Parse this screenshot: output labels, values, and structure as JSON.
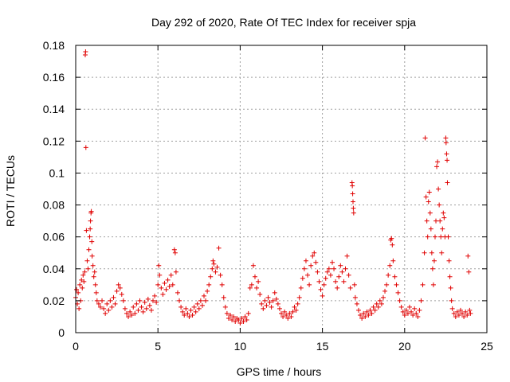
{
  "chart_data": {
    "type": "scatter",
    "title": "Day 292 of 2020, Rate Of TEC Index for receiver spja",
    "xlabel": "GPS time / hours",
    "ylabel": "ROTI / TECUs",
    "xlim": [
      0,
      25
    ],
    "ylim": [
      0,
      0.18
    ],
    "xticks": [
      0,
      5,
      10,
      15,
      20,
      25
    ],
    "xtick_labels": [
      "0",
      "5",
      "10",
      "15",
      "20",
      "25"
    ],
    "yticks": [
      0,
      0.02,
      0.04,
      0.06,
      0.08,
      0.1,
      0.12,
      0.14,
      0.16,
      0.18
    ],
    "ytick_labels": [
      "0",
      "0.02",
      "0.04",
      "0.06",
      "0.08",
      "0.1",
      "0.12",
      "0.14",
      "0.16",
      "0.18"
    ],
    "grid": true,
    "marker": "plus",
    "color": "#e00000",
    "series": [
      {
        "name": "ROTI",
        "points": [
          [
            0.0,
            0.022
          ],
          [
            0.05,
            0.027
          ],
          [
            0.1,
            0.018
          ],
          [
            0.15,
            0.025
          ],
          [
            0.2,
            0.015
          ],
          [
            0.25,
            0.03
          ],
          [
            0.3,
            0.02
          ],
          [
            0.35,
            0.033
          ],
          [
            0.4,
            0.028
          ],
          [
            0.45,
            0.036
          ],
          [
            0.5,
            0.032
          ],
          [
            0.55,
            0.038
          ],
          [
            0.58,
            0.174
          ],
          [
            0.6,
            0.176
          ],
          [
            0.62,
            0.116
          ],
          [
            0.65,
            0.064
          ],
          [
            0.7,
            0.045
          ],
          [
            0.75,
            0.04
          ],
          [
            0.8,
            0.052
          ],
          [
            0.85,
            0.06
          ],
          [
            0.88,
            0.065
          ],
          [
            0.9,
            0.07
          ],
          [
            0.93,
            0.075
          ],
          [
            0.95,
            0.076
          ],
          [
            0.98,
            0.057
          ],
          [
            1.0,
            0.048
          ],
          [
            1.05,
            0.042
          ],
          [
            1.1,
            0.035
          ],
          [
            1.15,
            0.038
          ],
          [
            1.2,
            0.03
          ],
          [
            1.25,
            0.025
          ],
          [
            1.3,
            0.02
          ],
          [
            1.4,
            0.018
          ],
          [
            1.5,
            0.016
          ],
          [
            1.6,
            0.02
          ],
          [
            1.7,
            0.015
          ],
          [
            1.8,
            0.012
          ],
          [
            1.9,
            0.018
          ],
          [
            2.0,
            0.014
          ],
          [
            2.1,
            0.02
          ],
          [
            2.2,
            0.016
          ],
          [
            2.3,
            0.022
          ],
          [
            2.4,
            0.018
          ],
          [
            2.5,
            0.026
          ],
          [
            2.6,
            0.03
          ],
          [
            2.7,
            0.028
          ],
          [
            2.8,
            0.024
          ],
          [
            2.9,
            0.02
          ],
          [
            3.0,
            0.015
          ],
          [
            3.1,
            0.012
          ],
          [
            3.2,
            0.01
          ],
          [
            3.3,
            0.013
          ],
          [
            3.4,
            0.011
          ],
          [
            3.5,
            0.016
          ],
          [
            3.6,
            0.012
          ],
          [
            3.7,
            0.018
          ],
          [
            3.8,
            0.014
          ],
          [
            3.9,
            0.02
          ],
          [
            4.0,
            0.016
          ],
          [
            4.1,
            0.013
          ],
          [
            4.2,
            0.019
          ],
          [
            4.3,
            0.015
          ],
          [
            4.4,
            0.021
          ],
          [
            4.5,
            0.017
          ],
          [
            4.6,
            0.014
          ],
          [
            4.7,
            0.02
          ],
          [
            4.8,
            0.023
          ],
          [
            4.9,
            0.019
          ],
          [
            5.0,
            0.03
          ],
          [
            5.05,
            0.042
          ],
          [
            5.1,
            0.036
          ],
          [
            5.2,
            0.028
          ],
          [
            5.3,
            0.024
          ],
          [
            5.4,
            0.031
          ],
          [
            5.5,
            0.027
          ],
          [
            5.6,
            0.033
          ],
          [
            5.7,
            0.029
          ],
          [
            5.8,
            0.036
          ],
          [
            5.9,
            0.03
          ],
          [
            6.0,
            0.052
          ],
          [
            6.05,
            0.05
          ],
          [
            6.1,
            0.038
          ],
          [
            6.2,
            0.025
          ],
          [
            6.3,
            0.02
          ],
          [
            6.4,
            0.016
          ],
          [
            6.5,
            0.013
          ],
          [
            6.6,
            0.011
          ],
          [
            6.7,
            0.015
          ],
          [
            6.8,
            0.012
          ],
          [
            6.9,
            0.01
          ],
          [
            7.0,
            0.014
          ],
          [
            7.1,
            0.011
          ],
          [
            7.2,
            0.016
          ],
          [
            7.3,
            0.013
          ],
          [
            7.4,
            0.018
          ],
          [
            7.5,
            0.015
          ],
          [
            7.6,
            0.02
          ],
          [
            7.7,
            0.017
          ],
          [
            7.8,
            0.023
          ],
          [
            7.9,
            0.02
          ],
          [
            8.0,
            0.026
          ],
          [
            8.1,
            0.03
          ],
          [
            8.2,
            0.035
          ],
          [
            8.3,
            0.04
          ],
          [
            8.35,
            0.045
          ],
          [
            8.4,
            0.043
          ],
          [
            8.5,
            0.038
          ],
          [
            8.6,
            0.041
          ],
          [
            8.7,
            0.053
          ],
          [
            8.8,
            0.036
          ],
          [
            8.9,
            0.03
          ],
          [
            9.0,
            0.022
          ],
          [
            9.1,
            0.016
          ],
          [
            9.2,
            0.012
          ],
          [
            9.3,
            0.009
          ],
          [
            9.4,
            0.011
          ],
          [
            9.5,
            0.008
          ],
          [
            9.6,
            0.01
          ],
          [
            9.7,
            0.007
          ],
          [
            9.8,
            0.009
          ],
          [
            9.9,
            0.008
          ],
          [
            10.0,
            0.006
          ],
          [
            10.1,
            0.009
          ],
          [
            10.2,
            0.007
          ],
          [
            10.3,
            0.01
          ],
          [
            10.4,
            0.008
          ],
          [
            10.5,
            0.012
          ],
          [
            10.6,
            0.028
          ],
          [
            10.7,
            0.03
          ],
          [
            10.8,
            0.042
          ],
          [
            10.9,
            0.035
          ],
          [
            11.0,
            0.028
          ],
          [
            11.1,
            0.032
          ],
          [
            11.2,
            0.024
          ],
          [
            11.3,
            0.018
          ],
          [
            11.4,
            0.015
          ],
          [
            11.5,
            0.02
          ],
          [
            11.6,
            0.017
          ],
          [
            11.7,
            0.022
          ],
          [
            11.8,
            0.019
          ],
          [
            11.9,
            0.016
          ],
          [
            12.0,
            0.02
          ],
          [
            12.1,
            0.025
          ],
          [
            12.2,
            0.021
          ],
          [
            12.3,
            0.018
          ],
          [
            12.4,
            0.015
          ],
          [
            12.5,
            0.012
          ],
          [
            12.6,
            0.01
          ],
          [
            12.7,
            0.013
          ],
          [
            12.8,
            0.011
          ],
          [
            12.9,
            0.009
          ],
          [
            13.0,
            0.012
          ],
          [
            13.1,
            0.01
          ],
          [
            13.2,
            0.013
          ],
          [
            13.3,
            0.016
          ],
          [
            13.4,
            0.014
          ],
          [
            13.5,
            0.018
          ],
          [
            13.6,
            0.022
          ],
          [
            13.7,
            0.028
          ],
          [
            13.8,
            0.034
          ],
          [
            13.9,
            0.04
          ],
          [
            14.0,
            0.045
          ],
          [
            14.1,
            0.036
          ],
          [
            14.2,
            0.03
          ],
          [
            14.3,
            0.042
          ],
          [
            14.4,
            0.048
          ],
          [
            14.5,
            0.05
          ],
          [
            14.6,
            0.044
          ],
          [
            14.7,
            0.038
          ],
          [
            14.8,
            0.032
          ],
          [
            14.9,
            0.027
          ],
          [
            15.0,
            0.023
          ],
          [
            15.1,
            0.03
          ],
          [
            15.2,
            0.034
          ],
          [
            15.3,
            0.038
          ],
          [
            15.4,
            0.04
          ],
          [
            15.5,
            0.036
          ],
          [
            15.6,
            0.044
          ],
          [
            15.7,
            0.04
          ],
          [
            15.8,
            0.032
          ],
          [
            15.9,
            0.028
          ],
          [
            16.0,
            0.035
          ],
          [
            16.1,
            0.042
          ],
          [
            16.2,
            0.038
          ],
          [
            16.3,
            0.032
          ],
          [
            16.4,
            0.04
          ],
          [
            16.5,
            0.048
          ],
          [
            16.6,
            0.036
          ],
          [
            16.7,
            0.028
          ],
          [
            16.8,
            0.094
          ],
          [
            16.82,
            0.092
          ],
          [
            16.84,
            0.087
          ],
          [
            16.86,
            0.082
          ],
          [
            16.88,
            0.078
          ],
          [
            16.9,
            0.075
          ],
          [
            16.95,
            0.03
          ],
          [
            17.0,
            0.022
          ],
          [
            17.1,
            0.018
          ],
          [
            17.2,
            0.014
          ],
          [
            17.3,
            0.011
          ],
          [
            17.4,
            0.009
          ],
          [
            17.5,
            0.012
          ],
          [
            17.6,
            0.01
          ],
          [
            17.7,
            0.013
          ],
          [
            17.8,
            0.011
          ],
          [
            17.9,
            0.014
          ],
          [
            18.0,
            0.012
          ],
          [
            18.1,
            0.016
          ],
          [
            18.2,
            0.014
          ],
          [
            18.3,
            0.018
          ],
          [
            18.4,
            0.016
          ],
          [
            18.5,
            0.02
          ],
          [
            18.6,
            0.018
          ],
          [
            18.7,
            0.022
          ],
          [
            18.8,
            0.026
          ],
          [
            18.9,
            0.03
          ],
          [
            19.0,
            0.036
          ],
          [
            19.1,
            0.042
          ],
          [
            19.15,
            0.058
          ],
          [
            19.2,
            0.059
          ],
          [
            19.25,
            0.055
          ],
          [
            19.3,
            0.045
          ],
          [
            19.4,
            0.035
          ],
          [
            19.5,
            0.03
          ],
          [
            19.6,
            0.025
          ],
          [
            19.7,
            0.02
          ],
          [
            19.8,
            0.016
          ],
          [
            19.9,
            0.013
          ],
          [
            20.0,
            0.011
          ],
          [
            20.1,
            0.014
          ],
          [
            20.2,
            0.012
          ],
          [
            20.3,
            0.016
          ],
          [
            20.4,
            0.013
          ],
          [
            20.5,
            0.011
          ],
          [
            20.6,
            0.015
          ],
          [
            20.7,
            0.012
          ],
          [
            20.8,
            0.01
          ],
          [
            20.9,
            0.014
          ],
          [
            21.0,
            0.02
          ],
          [
            21.1,
            0.03
          ],
          [
            21.2,
            0.05
          ],
          [
            21.25,
            0.122
          ],
          [
            21.3,
            0.085
          ],
          [
            21.35,
            0.07
          ],
          [
            21.4,
            0.06
          ],
          [
            21.45,
            0.082
          ],
          [
            21.5,
            0.088
          ],
          [
            21.55,
            0.075
          ],
          [
            21.6,
            0.065
          ],
          [
            21.65,
            0.05
          ],
          [
            21.7,
            0.04
          ],
          [
            21.75,
            0.03
          ],
          [
            21.8,
            0.045
          ],
          [
            21.85,
            0.06
          ],
          [
            21.9,
            0.07
          ],
          [
            21.95,
            0.104
          ],
          [
            22.0,
            0.107
          ],
          [
            22.05,
            0.09
          ],
          [
            22.1,
            0.08
          ],
          [
            22.15,
            0.07
          ],
          [
            22.2,
            0.06
          ],
          [
            22.25,
            0.05
          ],
          [
            22.3,
            0.065
          ],
          [
            22.35,
            0.075
          ],
          [
            22.4,
            0.072
          ],
          [
            22.45,
            0.06
          ],
          [
            22.5,
            0.122
          ],
          [
            22.52,
            0.119
          ],
          [
            22.55,
            0.112
          ],
          [
            22.58,
            0.108
          ],
          [
            22.6,
            0.094
          ],
          [
            22.65,
            0.06
          ],
          [
            22.7,
            0.045
          ],
          [
            22.75,
            0.035
          ],
          [
            22.8,
            0.028
          ],
          [
            22.85,
            0.02
          ],
          [
            22.9,
            0.015
          ],
          [
            23.0,
            0.012
          ],
          [
            23.1,
            0.01
          ],
          [
            23.2,
            0.013
          ],
          [
            23.3,
            0.011
          ],
          [
            23.4,
            0.014
          ],
          [
            23.5,
            0.012
          ],
          [
            23.6,
            0.01
          ],
          [
            23.7,
            0.013
          ],
          [
            23.8,
            0.011
          ],
          [
            23.85,
            0.048
          ],
          [
            23.9,
            0.038
          ],
          [
            23.95,
            0.014
          ],
          [
            24.0,
            0.012
          ]
        ]
      }
    ]
  }
}
